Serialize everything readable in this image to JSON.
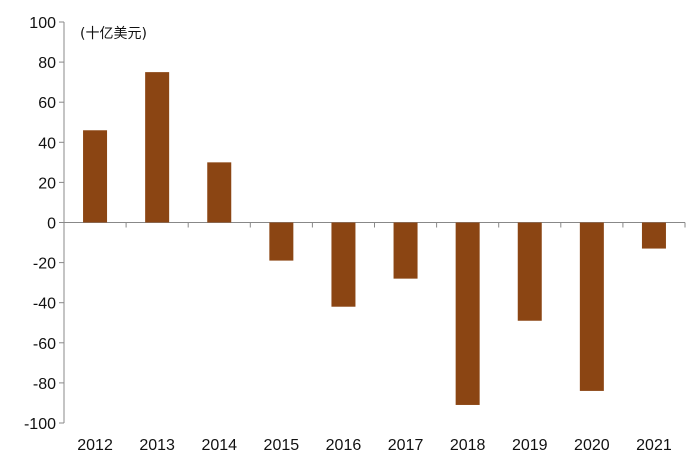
{
  "chart_data": {
    "type": "bar",
    "title": "",
    "unit_label": "(十亿美元)",
    "xlabel": "",
    "ylabel": "",
    "categories": [
      "2012",
      "2013",
      "2014",
      "2015",
      "2016",
      "2017",
      "2018",
      "2019",
      "2020",
      "2021"
    ],
    "values": [
      46,
      75,
      30,
      -19,
      -42,
      -28,
      -91,
      -49,
      -84,
      -13
    ],
    "ylim": [
      -100,
      100
    ],
    "yticks": [
      100,
      80,
      60,
      40,
      20,
      0,
      -20,
      -40,
      -60,
      -80,
      -100
    ],
    "grid": false,
    "legend": "none",
    "bar_color": "#8B4513"
  }
}
